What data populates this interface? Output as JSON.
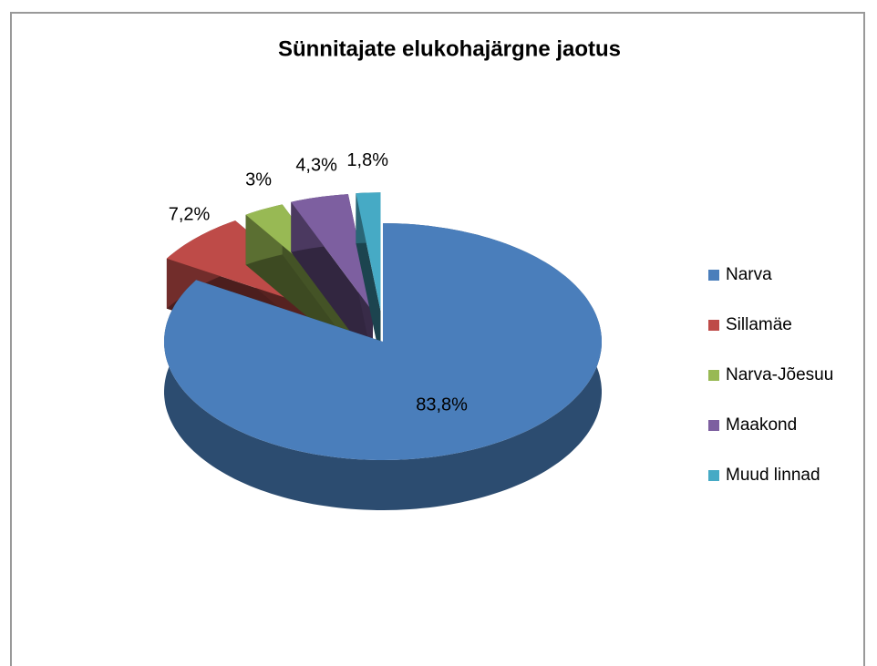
{
  "chart_data": {
    "type": "pie",
    "title": "Sünnitajate elukohajärgne jaotus",
    "categories": [
      "Narva",
      "Sillamäe",
      "Narva-Jõesuu",
      "Maakond",
      "Muud linnad"
    ],
    "values": [
      83.8,
      7.2,
      3,
      4.3,
      1.8
    ],
    "value_labels": [
      "83,8%",
      "7,2%",
      "3%",
      "4,3%",
      "1,8%"
    ],
    "colors": [
      "#4a7ebb",
      "#be4b48",
      "#98b954",
      "#7d5fa0",
      "#46aac5"
    ],
    "legend": "right"
  }
}
